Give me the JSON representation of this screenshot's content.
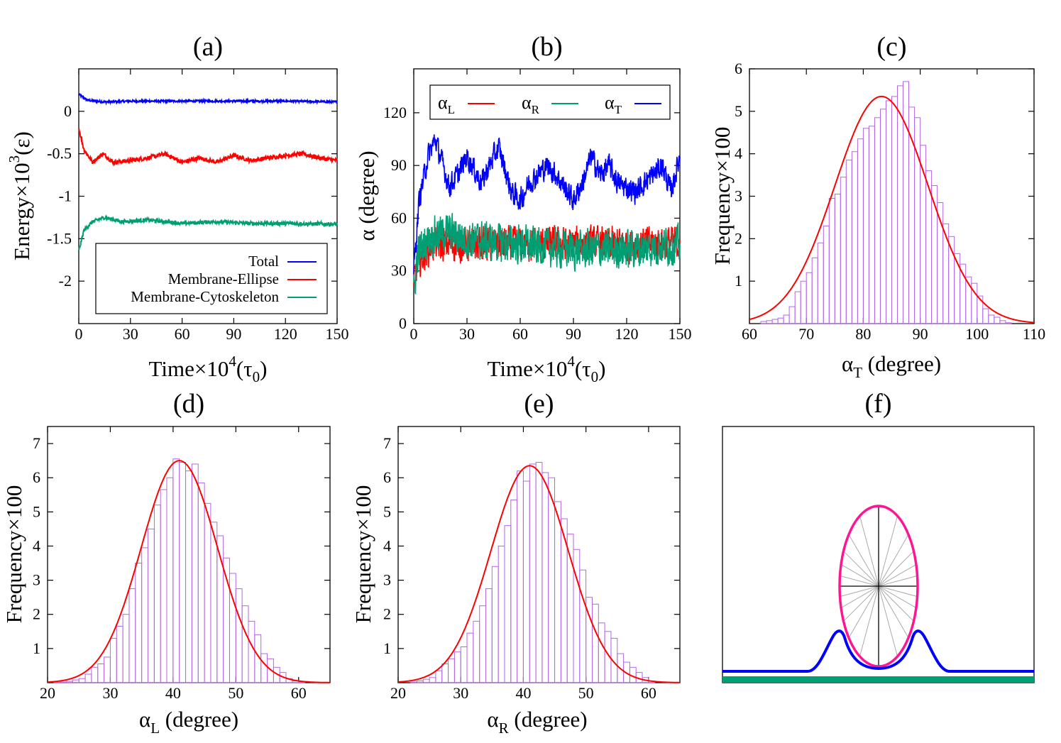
{
  "chart_data": [
    {
      "id": "a",
      "type": "line",
      "title": "(a)",
      "xlabel_main": "Time×10",
      "xlabel_sup": "4",
      "xlabel_post": "(τ",
      "xlabel_sub": "0",
      "xlabel_end": ")",
      "ylabel_main": "Energy×10",
      "ylabel_sup": "3",
      "ylabel_end": "(ε)",
      "xlim": [
        0,
        150
      ],
      "ylim": [
        -2.5,
        0.5
      ],
      "xticks": [
        0,
        30,
        60,
        90,
        120,
        150
      ],
      "yticks": [
        0,
        -0.5,
        -1,
        -1.5,
        -2
      ],
      "ytick_labels": [
        "0",
        "-0.5",
        "-1",
        "-1.5",
        "-2"
      ],
      "legend": [
        "Total",
        "Membrane-Ellipse",
        "Membrane-Cytoskeleton"
      ],
      "series": [
        {
          "name": "Total",
          "color": "#0000ff",
          "mean": 0.12,
          "start": 0.2,
          "amp": 0.012,
          "x": [
            0,
            5,
            15,
            30,
            60,
            90,
            120,
            150
          ],
          "y": [
            0.2,
            0.13,
            0.11,
            0.12,
            0.12,
            0.12,
            0.12,
            0.11
          ]
        },
        {
          "name": "Membrane-Ellipse",
          "color": "#ff0000",
          "mean": -0.57,
          "start": -0.2,
          "amp": 0.025,
          "x": [
            0,
            3,
            8,
            14,
            20,
            30,
            40,
            50,
            60,
            70,
            80,
            90,
            100,
            110,
            120,
            130,
            140,
            150
          ],
          "y": [
            -0.2,
            -0.45,
            -0.6,
            -0.5,
            -0.6,
            -0.58,
            -0.55,
            -0.5,
            -0.6,
            -0.55,
            -0.6,
            -0.52,
            -0.58,
            -0.55,
            -0.52,
            -0.5,
            -0.55,
            -0.58
          ]
        },
        {
          "name": "Membrane-Cytoskeleton",
          "color": "#009e73",
          "mean": -1.3,
          "start": -1.65,
          "amp": 0.022,
          "x": [
            0,
            3,
            8,
            15,
            25,
            40,
            60,
            80,
            100,
            120,
            150
          ],
          "y": [
            -1.65,
            -1.4,
            -1.3,
            -1.25,
            -1.3,
            -1.28,
            -1.32,
            -1.3,
            -1.32,
            -1.32,
            -1.33
          ]
        }
      ]
    },
    {
      "id": "b",
      "type": "line",
      "title": "(b)",
      "xlabel_main": "Time×10",
      "xlabel_sup": "4",
      "xlabel_post": "(τ",
      "xlabel_sub": "0",
      "xlabel_end": ")",
      "ylabel": "α (degree)",
      "xlim": [
        0,
        150
      ],
      "ylim": [
        0,
        145
      ],
      "xticks": [
        0,
        30,
        60,
        90,
        120,
        150
      ],
      "yticks": [
        0,
        30,
        60,
        90,
        120
      ],
      "legend": [
        {
          "sym": "α",
          "sub": "L",
          "color": "#ff0000"
        },
        {
          "sym": "α",
          "sub": "R",
          "color": "#009e73"
        },
        {
          "sym": "α",
          "sub": "T",
          "color": "#0000ff"
        }
      ],
      "series": [
        {
          "name": "αL",
          "color": "#ff0000",
          "amp": 9,
          "x": [
            0,
            2,
            10,
            30,
            60,
            90,
            120,
            150
          ],
          "y": [
            20,
            35,
            45,
            45,
            45,
            45,
            45,
            46
          ]
        },
        {
          "name": "αR",
          "color": "#009e73",
          "amp": 10,
          "x": [
            0,
            2,
            10,
            20,
            30,
            60,
            90,
            120,
            150
          ],
          "y": [
            15,
            40,
            50,
            52,
            48,
            45,
            42,
            42,
            45
          ]
        },
        {
          "name": "αT",
          "color": "#0000ff",
          "amp": 6,
          "x": [
            0,
            3,
            8,
            12,
            20,
            25,
            30,
            38,
            45,
            48,
            55,
            60,
            65,
            75,
            80,
            90,
            95,
            100,
            105,
            110,
            115,
            125,
            135,
            140,
            145,
            150
          ],
          "y": [
            30,
            70,
            95,
            105,
            78,
            85,
            95,
            80,
            95,
            100,
            75,
            70,
            80,
            90,
            85,
            70,
            80,
            95,
            85,
            90,
            80,
            75,
            85,
            90,
            75,
            95
          ]
        }
      ]
    },
    {
      "id": "c",
      "type": "histogram",
      "title": "(c)",
      "xlabel_sym": "α",
      "xlabel_sub": "T",
      "xlabel_end": " (degree)",
      "ylabel": "Frequency×100",
      "xlim": [
        60,
        110
      ],
      "ylim": [
        0,
        6
      ],
      "xticks": [
        60,
        70,
        80,
        90,
        100,
        110
      ],
      "yticks": [
        1,
        2,
        3,
        4,
        5,
        6
      ],
      "bin_start": 60,
      "bin_width": 1,
      "values": [
        0,
        0,
        0.05,
        0.07,
        0.1,
        0.13,
        0.2,
        0.4,
        0.75,
        1.0,
        1.2,
        1.55,
        1.9,
        2.3,
        2.95,
        3.05,
        3.45,
        3.85,
        4.05,
        4.35,
        4.6,
        4.65,
        4.85,
        5.05,
        5.25,
        5.35,
        5.6,
        5.7,
        5.1,
        4.85,
        4.2,
        3.6,
        3.25,
        2.85,
        2.35,
        2.05,
        1.65,
        1.4,
        1.1,
        0.95,
        0.65,
        0.35,
        0.2,
        0.15,
        0.07,
        0.02,
        0,
        0,
        0,
        0
      ],
      "fit": {
        "type": "gaussian",
        "amplitude": 5.35,
        "mean": 83.2,
        "sigma": 8.2,
        "color": "#ff0000"
      }
    },
    {
      "id": "d",
      "type": "histogram",
      "title": "(d)",
      "xlabel_sym": "α",
      "xlabel_sub": "L",
      "xlabel_end": " (degree)",
      "ylabel": "Frequency×100",
      "xlim": [
        20,
        65
      ],
      "ylim": [
        0,
        7.5
      ],
      "xticks": [
        20,
        30,
        40,
        50,
        60
      ],
      "yticks": [
        1,
        2,
        3,
        4,
        5,
        6,
        7
      ],
      "bin_start": 20,
      "bin_width": 1,
      "values": [
        0,
        0.01,
        0.02,
        0.04,
        0.08,
        0.12,
        0.25,
        0.45,
        0.55,
        0.75,
        1.3,
        1.65,
        2.0,
        2.75,
        3.5,
        3.95,
        4.5,
        5.2,
        5.65,
        6.0,
        6.55,
        6.45,
        6.2,
        6.4,
        5.85,
        5.25,
        4.7,
        4.3,
        3.65,
        3.2,
        2.75,
        2.25,
        1.8,
        1.4,
        0.85,
        0.7,
        0.45,
        0.3,
        0.12,
        0.05,
        0.02,
        0,
        0,
        0,
        0
      ],
      "fit": {
        "type": "gaussian",
        "amplitude": 6.5,
        "mean": 41,
        "sigma": 6.1,
        "color": "#ff0000"
      }
    },
    {
      "id": "e",
      "type": "histogram",
      "title": "(e)",
      "xlabel_sym": "α",
      "xlabel_sub": "R",
      "xlabel_end": " (degree)",
      "ylabel": "Frequency×100",
      "xlim": [
        20,
        65
      ],
      "ylim": [
        0,
        7.5
      ],
      "xticks": [
        20,
        30,
        40,
        50,
        60
      ],
      "yticks": [
        1,
        2,
        3,
        4,
        5,
        6,
        7
      ],
      "bin_start": 20,
      "bin_width": 1,
      "values": [
        0,
        0,
        0.02,
        0.05,
        0.1,
        0.15,
        0.35,
        0.55,
        0.7,
        0.9,
        1.05,
        1.45,
        1.8,
        2.25,
        2.75,
        3.4,
        4.0,
        4.6,
        5.35,
        6.2,
        5.9,
        6.4,
        6.45,
        6.15,
        6.0,
        5.3,
        4.8,
        4.35,
        3.9,
        3.3,
        2.5,
        2.3,
        1.75,
        1.5,
        1.3,
        0.85,
        0.6,
        0.45,
        0.3,
        0.15,
        0.05,
        0,
        0,
        0,
        0
      ],
      "fit": {
        "type": "gaussian",
        "amplitude": 6.35,
        "mean": 41,
        "sigma": 6.2,
        "color": "#ff0000"
      }
    },
    {
      "id": "f",
      "type": "schematic",
      "title": "(f)",
      "colors": {
        "membrane": "#0000ff",
        "ellipse": "#ff1493",
        "cytoskeleton": "#009e73",
        "spokes": "#aaaaaa",
        "axes": "#000000"
      }
    }
  ]
}
